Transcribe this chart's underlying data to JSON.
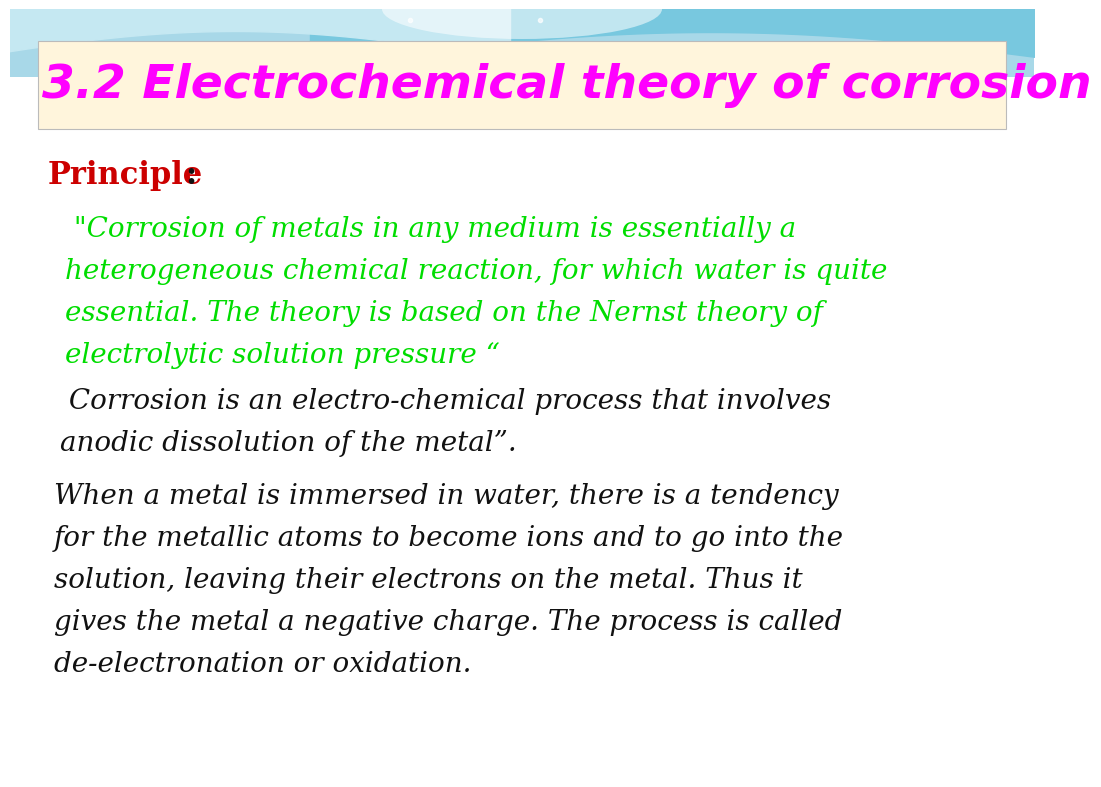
{
  "title": "3.2 Electrochemical theory of corrosion",
  "title_color": "#FF00FF",
  "title_bg_color": "#FFF5DC",
  "bg_color": "#FFFFFF",
  "top_bg_color": "#B8E4EF",
  "principle_label": "Principle",
  "principle_colon": ":",
  "principle_color": "#CC0000",
  "green_quote_line1": " \"Corrosion of metals in any medium is essentially a",
  "green_quote_line2": "heterogeneous chemical reaction, for which water is quite",
  "green_quote_line3": "essential. The theory is based on the Nernst theory of",
  "green_quote_line4": "electrolytic solution pressure “",
  "green_color": "#00DD00",
  "black_text1_line1": " Corrosion is an electro-chemical process that involves",
  "black_text1_line2": "anodic dissolution of the metal”.",
  "black_text2_line1": "When a metal is immersed in water, there is a tendency",
  "black_text2_line2": "for the metallic atoms to become ions and to go into the",
  "black_text2_line3": "solution, leaving their electrons on the metal. Thus it",
  "black_text2_line4": "gives the metal a negative charge. The process is called",
  "black_text2_line5": "de-electronation or oxidation.",
  "black_color": "#111111"
}
